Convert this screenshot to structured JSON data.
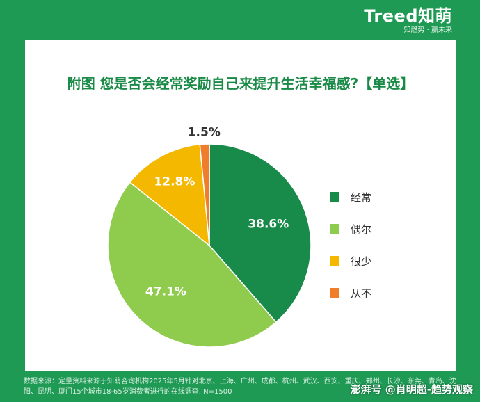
{
  "brand": {
    "logo": "Treed知萌",
    "slogan": "知趋势 · 赢未来"
  },
  "colors": {
    "background": "#1f9a55",
    "card": "#ffffff",
    "title": "#1a8a47"
  },
  "chart_data": {
    "type": "pie",
    "title": "附图 您是否会经常奖励自己来提升生活幸福感?【单选】",
    "categories": [
      "经常",
      "偶尔",
      "很少",
      "从不"
    ],
    "values": [
      38.6,
      47.1,
      12.8,
      1.5
    ],
    "labels": [
      "38.6%",
      "47.1%",
      "12.8%",
      "1.5%"
    ],
    "colors": [
      "#188a4a",
      "#8fcc4d",
      "#f4b800",
      "#ef7d2b"
    ],
    "legend_position": "right",
    "start_angle": "top, clockwise"
  },
  "footer": {
    "source": "数据来源：定量资料来源于知萌咨询机构2025年5月针对北京、上海、广州、成都、杭州、武汉、西安、重庆、郑州、长沙、东莞、青岛、沈阳、昆明、厦门15个城市18-65岁消费者进行的在线调查, N=1500"
  },
  "watermark": {
    "text": "澎湃号 @肖明超-趋势观察"
  }
}
